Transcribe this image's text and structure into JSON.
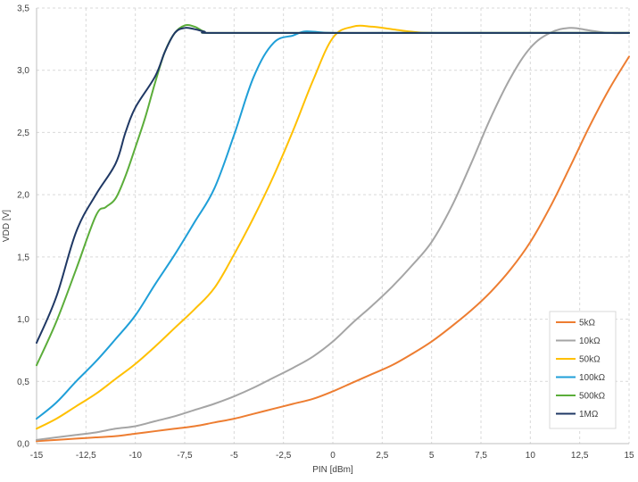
{
  "chart_data": {
    "type": "line",
    "title": "",
    "xlabel": "PIN [dBm]",
    "ylabel": "VDD [V]",
    "xlim": [
      -15,
      15
    ],
    "ylim": [
      0,
      3.5
    ],
    "xticks": [
      -15,
      -12.5,
      -10,
      -7.5,
      -5,
      -2.5,
      0,
      2.5,
      5,
      7.5,
      10,
      12.5,
      15
    ],
    "xtick_labels": [
      "-15",
      "-12,5",
      "-10",
      "-7,5",
      "-5",
      "-2,5",
      "0",
      "2,5",
      "5",
      "7,5",
      "10",
      "12,5",
      "15"
    ],
    "yticks": [
      0,
      0.5,
      1.0,
      1.5,
      2.0,
      2.5,
      3.0,
      3.5
    ],
    "ytick_labels": [
      "0,0",
      "0,5",
      "1,0",
      "1,5",
      "2,0",
      "2,5",
      "3,0",
      "3,5"
    ],
    "grid": "dashed",
    "legend_position": "bottom-right",
    "series": [
      {
        "name": "5kΩ",
        "color": "#ED7D31",
        "points": [
          [
            -15,
            0.02
          ],
          [
            -14,
            0.03
          ],
          [
            -13,
            0.04
          ],
          [
            -12,
            0.05
          ],
          [
            -11,
            0.06
          ],
          [
            -10,
            0.08
          ],
          [
            -9,
            0.1
          ],
          [
            -8,
            0.12
          ],
          [
            -7,
            0.14
          ],
          [
            -6,
            0.17
          ],
          [
            -5,
            0.2
          ],
          [
            -4,
            0.24
          ],
          [
            -3,
            0.28
          ],
          [
            -2,
            0.32
          ],
          [
            -1,
            0.36
          ],
          [
            0,
            0.42
          ],
          [
            1,
            0.49
          ],
          [
            2,
            0.56
          ],
          [
            3,
            0.63
          ],
          [
            4,
            0.72
          ],
          [
            5,
            0.82
          ],
          [
            6,
            0.94
          ],
          [
            7,
            1.07
          ],
          [
            8,
            1.22
          ],
          [
            9,
            1.4
          ],
          [
            10,
            1.62
          ],
          [
            11,
            1.9
          ],
          [
            12,
            2.22
          ],
          [
            13,
            2.55
          ],
          [
            14,
            2.85
          ],
          [
            15,
            3.11
          ]
        ]
      },
      {
        "name": "10kΩ",
        "color": "#A5A5A5",
        "points": [
          [
            -15,
            0.03
          ],
          [
            -14,
            0.05
          ],
          [
            -13,
            0.07
          ],
          [
            -12,
            0.09
          ],
          [
            -11,
            0.12
          ],
          [
            -10,
            0.14
          ],
          [
            -9,
            0.18
          ],
          [
            -8,
            0.22
          ],
          [
            -7,
            0.27
          ],
          [
            -6,
            0.32
          ],
          [
            -5,
            0.38
          ],
          [
            -4,
            0.45
          ],
          [
            -3,
            0.53
          ],
          [
            -2,
            0.61
          ],
          [
            -1,
            0.7
          ],
          [
            0,
            0.82
          ],
          [
            1,
            0.97
          ],
          [
            2,
            1.11
          ],
          [
            3,
            1.26
          ],
          [
            4,
            1.43
          ],
          [
            5,
            1.62
          ],
          [
            6,
            1.9
          ],
          [
            7,
            2.25
          ],
          [
            8,
            2.62
          ],
          [
            9,
            2.94
          ],
          [
            10,
            3.18
          ],
          [
            11,
            3.3
          ],
          [
            12,
            3.34
          ],
          [
            13,
            3.32
          ],
          [
            14,
            3.3
          ],
          [
            15,
            3.3
          ]
        ]
      },
      {
        "name": "50kΩ",
        "color": "#FFC000",
        "points": [
          [
            -15,
            0.12
          ],
          [
            -14,
            0.2
          ],
          [
            -13,
            0.3
          ],
          [
            -12,
            0.4
          ],
          [
            -11,
            0.52
          ],
          [
            -10,
            0.64
          ],
          [
            -9,
            0.78
          ],
          [
            -8,
            0.93
          ],
          [
            -7,
            1.08
          ],
          [
            -6,
            1.25
          ],
          [
            -5,
            1.52
          ],
          [
            -4,
            1.82
          ],
          [
            -3,
            2.15
          ],
          [
            -2,
            2.52
          ],
          [
            -1,
            2.92
          ],
          [
            0,
            3.26
          ],
          [
            1,
            3.35
          ],
          [
            2,
            3.35
          ],
          [
            3,
            3.33
          ],
          [
            4,
            3.31
          ],
          [
            5,
            3.3
          ],
          [
            7.5,
            3.3
          ],
          [
            10,
            3.3
          ],
          [
            12.5,
            3.3
          ],
          [
            15,
            3.3
          ]
        ]
      },
      {
        "name": "100kΩ",
        "color": "#1F9FD8",
        "points": [
          [
            -15,
            0.2
          ],
          [
            -14,
            0.33
          ],
          [
            -13,
            0.5
          ],
          [
            -12,
            0.66
          ],
          [
            -11,
            0.84
          ],
          [
            -10,
            1.03
          ],
          [
            -9,
            1.28
          ],
          [
            -8,
            1.52
          ],
          [
            -7,
            1.78
          ],
          [
            -6,
            2.05
          ],
          [
            -5,
            2.48
          ],
          [
            -4,
            2.95
          ],
          [
            -3,
            3.22
          ],
          [
            -2,
            3.28
          ],
          [
            -1.5,
            3.31
          ],
          [
            -1,
            3.31
          ],
          [
            0,
            3.3
          ],
          [
            2.5,
            3.3
          ],
          [
            5,
            3.3
          ],
          [
            10,
            3.3
          ],
          [
            15,
            3.3
          ]
        ]
      },
      {
        "name": "500kΩ",
        "color": "#5BAD3A",
        "points": [
          [
            -15,
            0.63
          ],
          [
            -14,
            0.98
          ],
          [
            -13,
            1.4
          ],
          [
            -12,
            1.83
          ],
          [
            -11.5,
            1.9
          ],
          [
            -11,
            1.97
          ],
          [
            -10.5,
            2.15
          ],
          [
            -10,
            2.38
          ],
          [
            -9.5,
            2.62
          ],
          [
            -9,
            2.9
          ],
          [
            -8.5,
            3.15
          ],
          [
            -8,
            3.3
          ],
          [
            -7.5,
            3.36
          ],
          [
            -7,
            3.35
          ],
          [
            -6.5,
            3.31
          ],
          [
            -6,
            3.3
          ],
          [
            0,
            3.3
          ],
          [
            15,
            3.3
          ]
        ]
      },
      {
        "name": "1MΩ",
        "color": "#1F3864",
        "points": [
          [
            -15,
            0.81
          ],
          [
            -14,
            1.18
          ],
          [
            -13,
            1.7
          ],
          [
            -12,
            2.0
          ],
          [
            -11,
            2.25
          ],
          [
            -10.5,
            2.5
          ],
          [
            -10,
            2.7
          ],
          [
            -9,
            2.95
          ],
          [
            -8.5,
            3.15
          ],
          [
            -8,
            3.3
          ],
          [
            -7.5,
            3.34
          ],
          [
            -7,
            3.33
          ],
          [
            -6.5,
            3.31
          ],
          [
            -6,
            3.3
          ],
          [
            0,
            3.3
          ],
          [
            15,
            3.3
          ]
        ]
      }
    ]
  }
}
